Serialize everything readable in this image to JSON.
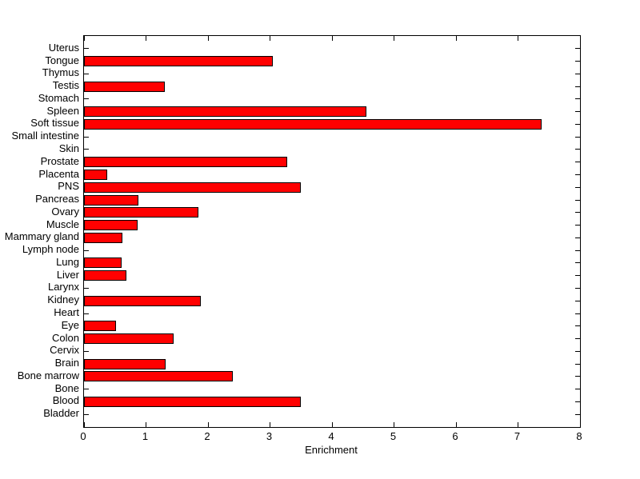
{
  "chart_data": {
    "type": "bar",
    "orientation": "horizontal",
    "title": "",
    "xlabel": "Enrichment",
    "ylabel": "",
    "xlim": [
      0,
      8
    ],
    "xticks": [
      0,
      1,
      2,
      3,
      4,
      5,
      6,
      7,
      8
    ],
    "grid": false,
    "legend": null,
    "background_color": "#FFFFFF",
    "bar_color": "#FF0000",
    "bar_edge_color": "#000000",
    "axis_color": "#000000",
    "categories_top_to_bottom": [
      "Uterus",
      "Tongue",
      "Thymus",
      "Testis",
      "Stomach",
      "Spleen",
      "Soft tissue",
      "Small intestine",
      "Skin",
      "Prostate",
      "Placenta",
      "PNS",
      "Pancreas",
      "Ovary",
      "Muscle",
      "Mammary gland",
      "Lymph node",
      "Lung",
      "Liver",
      "Larynx",
      "Kidney",
      "Heart",
      "Eye",
      "Colon",
      "Cervix",
      "Brain",
      "Bone marrow",
      "Bone",
      "Blood",
      "Bladder"
    ],
    "values": [
      0,
      3.05,
      0,
      1.3,
      0,
      4.55,
      7.38,
      0,
      0,
      3.28,
      0.37,
      3.5,
      0.88,
      1.85,
      0.86,
      0.62,
      0,
      0.61,
      0.68,
      0,
      1.89,
      0,
      0.52,
      1.45,
      0,
      1.32,
      2.4,
      0,
      3.5,
      0
    ]
  }
}
